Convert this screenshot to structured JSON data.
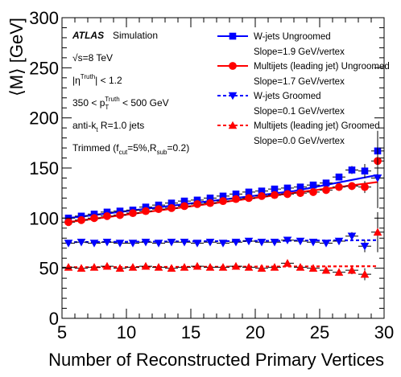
{
  "chart_data": {
    "type": "scatter",
    "xlabel": "Number of Reconstructed Primary Vertices",
    "ylabel": "⟨M⟩ [GeV]",
    "xlim": [
      5,
      30
    ],
    "ylim": [
      0,
      300
    ],
    "x_ticks": [
      5,
      10,
      15,
      20,
      25,
      30
    ],
    "y_ticks": [
      0,
      50,
      100,
      150,
      200,
      250,
      300
    ],
    "grid": false,
    "legend_position": "top-right",
    "annotations": {
      "experiment": "ATLAS",
      "label": "Simulation",
      "lines": [
        "√s=8 TeV",
        "|η^Truth| < 1.2",
        "350 < p_T^Truth < 500 GeV",
        "anti-k_t R=1.0 jets",
        "Trimmed (f_cut=5%,R_sub=0.2)"
      ]
    },
    "series": [
      {
        "name": "W-jets Ungroomed",
        "slope_label": "Slope=1.9 GeV/vertex",
        "color": "#0000ff",
        "marker": "square",
        "line": "solid",
        "x": [
          5.5,
          6.5,
          7.5,
          8.5,
          9.5,
          10.5,
          11.5,
          12.5,
          13.5,
          14.5,
          15.5,
          16.5,
          17.5,
          18.5,
          19.5,
          20.5,
          21.5,
          22.5,
          23.5,
          24.5,
          25.5,
          26.5,
          27.5,
          28.5,
          29.5
        ],
        "y": [
          100,
          102,
          104,
          106,
          107,
          108,
          111,
          113,
          115,
          117,
          118,
          120,
          122,
          124,
          126,
          127,
          129,
          130,
          131,
          133,
          135,
          141,
          148,
          147,
          167
        ],
        "err": [
          1,
          1,
          1,
          1,
          1,
          1,
          1,
          1,
          1,
          1,
          1,
          1,
          1,
          1,
          1,
          1,
          1,
          1,
          1,
          1.5,
          2,
          3,
          4,
          7,
          20
        ],
        "fit": {
          "x": [
            5.5,
            23,
            29.5
          ],
          "y": [
            100,
            127,
            143
          ]
        }
      },
      {
        "name": "Multijets (leading jet) Ungroomed",
        "slope_label": "Slope=1.7 GeV/vertex",
        "color": "#ff0000",
        "marker": "circle",
        "line": "solid",
        "x": [
          5.5,
          6.5,
          7.5,
          8.5,
          9.5,
          10.5,
          11.5,
          12.5,
          13.5,
          14.5,
          15.5,
          16.5,
          17.5,
          18.5,
          19.5,
          20.5,
          21.5,
          22.5,
          23.5,
          24.5,
          25.5,
          26.5,
          27.5,
          28.5,
          29.5
        ],
        "y": [
          96,
          98,
          100,
          102,
          103,
          105,
          107,
          109,
          110,
          112,
          114,
          115,
          117,
          119,
          120,
          122,
          123,
          124,
          125,
          126,
          128,
          131,
          132,
          131,
          157
        ],
        "err": [
          1,
          1,
          1,
          1,
          1,
          1,
          1,
          1,
          1,
          1,
          1,
          1,
          1,
          1,
          1,
          1,
          1,
          1,
          1,
          1.5,
          2,
          3,
          4,
          6,
          30
        ],
        "fit": {
          "x": [
            5.5,
            29.5
          ],
          "y": [
            96,
            136
          ]
        }
      },
      {
        "name": "W-jets Groomed",
        "slope_label": "Slope=0.1 GeV/vertex",
        "color": "#0000ff",
        "marker": "triangle-down",
        "line": "dashed",
        "x": [
          5.5,
          6.5,
          7.5,
          8.5,
          9.5,
          10.5,
          11.5,
          12.5,
          13.5,
          14.5,
          15.5,
          16.5,
          17.5,
          18.5,
          19.5,
          20.5,
          21.5,
          22.5,
          23.5,
          24.5,
          25.5,
          26.5,
          27.5,
          28.5,
          29.5
        ],
        "y": [
          75,
          76,
          75,
          76,
          75,
          75,
          76,
          75,
          76,
          76,
          75,
          76,
          75,
          76,
          77,
          76,
          76,
          78,
          77,
          76,
          75,
          77,
          82,
          72,
          140
        ],
        "err": [
          1,
          1,
          1,
          1,
          1,
          1,
          1,
          1,
          1,
          1,
          1,
          1,
          1,
          1,
          1,
          1,
          1,
          1,
          1,
          1.5,
          2,
          3,
          4,
          6,
          30
        ],
        "fit": {
          "x": [
            5.5,
            29.5
          ],
          "y": [
            76,
            78
          ]
        }
      },
      {
        "name": "Multijets (leading jet) Groomed",
        "slope_label": "Slope=0.0 GeV/vertex",
        "color": "#ff0000",
        "marker": "triangle-up",
        "line": "dashed",
        "x": [
          5.5,
          6.5,
          7.5,
          8.5,
          9.5,
          10.5,
          11.5,
          12.5,
          13.5,
          14.5,
          15.5,
          16.5,
          17.5,
          18.5,
          19.5,
          20.5,
          21.5,
          22.5,
          23.5,
          24.5,
          25.5,
          26.5,
          27.5,
          28.5,
          29.5
        ],
        "y": [
          51,
          50,
          51,
          52,
          50,
          51,
          52,
          51,
          50,
          51,
          52,
          51,
          51,
          52,
          51,
          50,
          51,
          55,
          51,
          50,
          48,
          46,
          48,
          44,
          86
        ],
        "err": [
          1,
          1,
          1,
          1,
          1,
          1,
          1,
          1,
          1,
          1,
          1,
          1,
          1,
          1,
          1,
          1,
          1,
          1,
          1,
          1.5,
          2,
          3,
          4,
          6,
          20
        ],
        "fit": {
          "x": [
            5.5,
            29.5
          ],
          "y": [
            51,
            52
          ]
        }
      }
    ]
  }
}
